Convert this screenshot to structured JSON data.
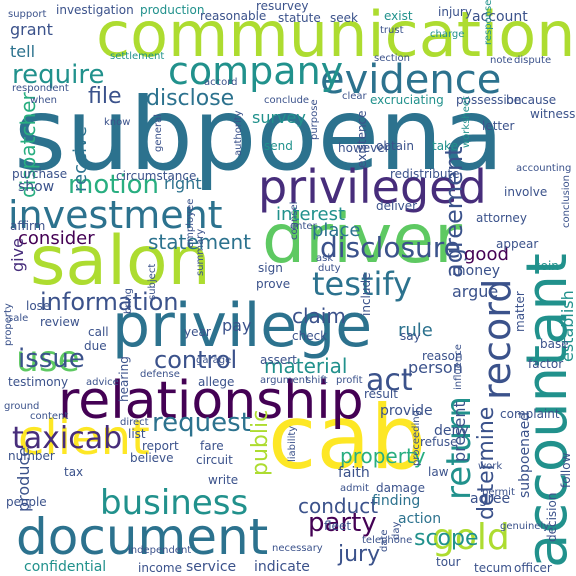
{
  "palette": {
    "dark_purple": "#440154",
    "indigo": "#472d7b",
    "blue": "#3b528b",
    "steel": "#2c728e",
    "teal": "#21918c",
    "sea_green": "#28ae80",
    "green": "#5ec962",
    "lime": "#addc30",
    "yellow": "#fde725"
  },
  "words": [
    {
      "text": "subpoena",
      "color": "#2c728e"
    },
    {
      "text": "communication",
      "color": "#addc30"
    },
    {
      "text": "privilege",
      "color": "#2c728e"
    },
    {
      "text": "cab",
      "color": "#fde725"
    },
    {
      "text": "document",
      "color": "#2c728e"
    },
    {
      "text": "relationship",
      "color": "#440154"
    },
    {
      "text": "salon",
      "color": "#addc30"
    },
    {
      "text": "driver",
      "color": "#5ec962"
    },
    {
      "text": "accountant",
      "color": "#21918c"
    },
    {
      "text": "evidence",
      "color": "#2c728e"
    },
    {
      "text": "privileged",
      "color": "#472d7b"
    },
    {
      "text": "client",
      "color": "#fde725"
    },
    {
      "text": "investment",
      "color": "#2c728e"
    },
    {
      "text": "company",
      "color": "#21918c"
    },
    {
      "text": "require",
      "color": "#21918c"
    },
    {
      "text": "record",
      "color": "#3b528b"
    },
    {
      "text": "return",
      "color": "#21918c"
    },
    {
      "text": "business",
      "color": "#21918c"
    },
    {
      "text": "gold",
      "color": "#addc30"
    },
    {
      "text": "testify",
      "color": "#2c728e"
    },
    {
      "text": "use",
      "color": "#5ec962"
    },
    {
      "text": "disclosure",
      "color": "#3b528b"
    },
    {
      "text": "taxicab",
      "color": "#472d7b"
    },
    {
      "text": "request",
      "color": "#2c728e"
    },
    {
      "text": "control",
      "color": "#3b528b"
    },
    {
      "text": "issue",
      "color": "#3b528b"
    },
    {
      "text": "information",
      "color": "#3b528b"
    },
    {
      "text": "motion",
      "color": "#28ae80"
    },
    {
      "text": "party",
      "color": "#440154"
    },
    {
      "text": "act",
      "color": "#3b528b"
    },
    {
      "text": "file",
      "color": "#3b528b"
    },
    {
      "text": "disclose",
      "color": "#2c728e"
    },
    {
      "text": "agreement",
      "color": "#3b528b"
    },
    {
      "text": "statement",
      "color": "#2c728e"
    },
    {
      "text": "claim",
      "color": "#3b528b"
    },
    {
      "text": "material",
      "color": "#21918c"
    },
    {
      "text": "conduct",
      "color": "#3b528b"
    },
    {
      "text": "public",
      "color": "#addc30"
    },
    {
      "text": "jury",
      "color": "#3b528b"
    },
    {
      "text": "scope",
      "color": "#21918c"
    },
    {
      "text": "determine",
      "color": "#3b528b"
    },
    {
      "text": "property",
      "color": "#28ae80"
    },
    {
      "text": "consider",
      "color": "#440154"
    },
    {
      "text": "interest",
      "color": "#21918c"
    },
    {
      "text": "place",
      "color": "#2c728e"
    },
    {
      "text": "good",
      "color": "#440154"
    },
    {
      "text": "receive",
      "color": "#2c728e"
    },
    {
      "text": "dispatcher",
      "color": "#28ae80"
    },
    {
      "text": "establish",
      "color": "#21918c"
    },
    {
      "text": "rule",
      "color": "#2c728e"
    },
    {
      "text": "person",
      "color": "#3b528b"
    },
    {
      "text": "produce",
      "color": "#3b528b"
    },
    {
      "text": "present",
      "color": "#3b528b"
    },
    {
      "text": "subpoenaed",
      "color": "#3b528b"
    },
    {
      "text": "grant",
      "color": "#3b528b"
    },
    {
      "text": "tell",
      "color": "#2c728e"
    },
    {
      "text": "survey",
      "color": "#21918c"
    },
    {
      "text": "right",
      "color": "#2c728e"
    },
    {
      "text": "show",
      "color": "#3b528b"
    },
    {
      "text": "give",
      "color": "#472d7b"
    },
    {
      "text": "pay",
      "color": "#3b528b"
    },
    {
      "text": "money",
      "color": "#3b528b"
    },
    {
      "text": "argue",
      "color": "#3b528b"
    },
    {
      "text": "finding",
      "color": "#2c728e"
    },
    {
      "text": "deny",
      "color": "#3b528b"
    },
    {
      "text": "provide",
      "color": "#3b528b"
    },
    {
      "text": "action",
      "color": "#2c728e"
    },
    {
      "text": "agree",
      "color": "#3b528b"
    },
    {
      "text": "service",
      "color": "#3b528b"
    },
    {
      "text": "indicate",
      "color": "#3b528b"
    },
    {
      "text": "confidential",
      "color": "#21918c"
    },
    {
      "text": "income",
      "color": "#3b528b"
    },
    {
      "text": "tecum",
      "color": "#3b528b"
    },
    {
      "text": "officer",
      "color": "#3b528b"
    },
    {
      "text": "investigation",
      "color": "#3b528b"
    },
    {
      "text": "production",
      "color": "#21918c"
    },
    {
      "text": "resurvey",
      "color": "#3b528b"
    },
    {
      "text": "reasonable",
      "color": "#3b528b"
    },
    {
      "text": "statute",
      "color": "#3b528b"
    },
    {
      "text": "seek",
      "color": "#3b528b"
    },
    {
      "text": "exist",
      "color": "#21918c"
    },
    {
      "text": "injury",
      "color": "#3b528b"
    },
    {
      "text": "account",
      "color": "#3b528b"
    },
    {
      "text": "support",
      "color": "#3b528b"
    },
    {
      "text": "trust",
      "color": "#3b528b"
    },
    {
      "text": "charge",
      "color": "#21918c"
    },
    {
      "text": "response",
      "color": "#21918c"
    },
    {
      "text": "settlement",
      "color": "#21918c"
    },
    {
      "text": "section",
      "color": "#3b528b"
    },
    {
      "text": "note",
      "color": "#3b528b"
    },
    {
      "text": "dispute",
      "color": "#3b528b"
    },
    {
      "text": "conclude",
      "color": "#3b528b"
    },
    {
      "text": "excruciating",
      "color": "#21918c"
    },
    {
      "text": "possession",
      "color": "#3b528b"
    },
    {
      "text": "because",
      "color": "#3b528b"
    },
    {
      "text": "witness",
      "color": "#3b528b"
    },
    {
      "text": "letter",
      "color": "#3b528b"
    },
    {
      "text": "worksheet",
      "color": "#21918c"
    },
    {
      "text": "accounting",
      "color": "#3b528b"
    },
    {
      "text": "obtain",
      "color": "#3b528b"
    },
    {
      "text": "take",
      "color": "#21918c"
    },
    {
      "text": "existence",
      "color": "#3b528b"
    },
    {
      "text": "purpose",
      "color": "#3b528b"
    },
    {
      "text": "authority",
      "color": "#3b528b"
    },
    {
      "text": "general",
      "color": "#3b528b"
    },
    {
      "text": "redistribute",
      "color": "#3b528b"
    },
    {
      "text": "involve",
      "color": "#3b528b"
    },
    {
      "text": "conclusion",
      "color": "#3b528b"
    },
    {
      "text": "purchase",
      "color": "#3b528b"
    },
    {
      "text": "circumstance",
      "color": "#3b528b"
    },
    {
      "text": "affirm",
      "color": "#3b528b"
    },
    {
      "text": "send",
      "color": "#21918c"
    },
    {
      "text": "however",
      "color": "#3b528b"
    },
    {
      "text": "deliver",
      "color": "#3b528b"
    },
    {
      "text": "attorney",
      "color": "#3b528b"
    },
    {
      "text": "appear",
      "color": "#3b528b"
    },
    {
      "text": "counsel",
      "color": "#3b528b"
    },
    {
      "text": "enter",
      "color": "#3b528b"
    },
    {
      "text": "employee",
      "color": "#3b528b"
    },
    {
      "text": "summary",
      "color": "#3b528b"
    },
    {
      "text": "sign",
      "color": "#3b528b"
    },
    {
      "text": "prove",
      "color": "#3b528b"
    },
    {
      "text": "ask",
      "color": "#3b528b"
    },
    {
      "text": "duty",
      "color": "#3b528b"
    },
    {
      "text": "review",
      "color": "#3b528b"
    },
    {
      "text": "lose",
      "color": "#3b528b"
    },
    {
      "text": "year",
      "color": "#3b528b"
    },
    {
      "text": "check",
      "color": "#3b528b"
    },
    {
      "text": "say",
      "color": "#3b528b"
    },
    {
      "text": "include",
      "color": "#3b528b"
    },
    {
      "text": "matter",
      "color": "#3b528b"
    },
    {
      "text": "coin",
      "color": "#21918c"
    },
    {
      "text": "sale",
      "color": "#3b528b"
    },
    {
      "text": "call",
      "color": "#3b528b"
    },
    {
      "text": "due",
      "color": "#3b528b"
    },
    {
      "text": "garage",
      "color": "#3b528b"
    },
    {
      "text": "assert",
      "color": "#3b528b"
    },
    {
      "text": "reason",
      "color": "#3b528b"
    },
    {
      "text": "base",
      "color": "#3b528b"
    },
    {
      "text": "factor",
      "color": "#3b528b"
    },
    {
      "text": "decision",
      "color": "#3b528b"
    },
    {
      "text": "follow",
      "color": "#3b528b"
    },
    {
      "text": "complaint",
      "color": "#3b528b"
    },
    {
      "text": "testimony",
      "color": "#3b528b"
    },
    {
      "text": "advice",
      "color": "#3b528b"
    },
    {
      "text": "defense",
      "color": "#3b528b"
    },
    {
      "text": "allege",
      "color": "#3b528b"
    },
    {
      "text": "argument",
      "color": "#3b528b"
    },
    {
      "text": "shift",
      "color": "#3b528b"
    },
    {
      "text": "profit",
      "color": "#3b528b"
    },
    {
      "text": "result",
      "color": "#3b528b"
    },
    {
      "text": "refuse",
      "color": "#3b528b"
    },
    {
      "text": "hearing",
      "color": "#3b528b"
    },
    {
      "text": "list",
      "color": "#3b528b"
    },
    {
      "text": "report",
      "color": "#3b528b"
    },
    {
      "text": "fare",
      "color": "#3b528b"
    },
    {
      "text": "believe",
      "color": "#3b528b"
    },
    {
      "text": "circuit",
      "color": "#3b528b"
    },
    {
      "text": "number",
      "color": "#3b528b"
    },
    {
      "text": "tax",
      "color": "#3b528b"
    },
    {
      "text": "people",
      "color": "#3b528b"
    },
    {
      "text": "write",
      "color": "#3b528b"
    },
    {
      "text": "faith",
      "color": "#3b528b"
    },
    {
      "text": "admit",
      "color": "#3b528b"
    },
    {
      "text": "liability",
      "color": "#3b528b"
    },
    {
      "text": "proceeding",
      "color": "#3b528b"
    },
    {
      "text": "law",
      "color": "#3b528b"
    },
    {
      "text": "damage",
      "color": "#3b528b"
    },
    {
      "text": "work",
      "color": "#3b528b"
    },
    {
      "text": "permit",
      "color": "#3b528b"
    },
    {
      "text": "fleet",
      "color": "#3b528b"
    },
    {
      "text": "telephone",
      "color": "#3b528b"
    },
    {
      "text": "date",
      "color": "#3b528b"
    },
    {
      "text": "day",
      "color": "#3b528b"
    },
    {
      "text": "tour",
      "color": "#3b528b"
    },
    {
      "text": "independent",
      "color": "#3b528b"
    },
    {
      "text": "necessary",
      "color": "#3b528b"
    },
    {
      "text": "genuinely",
      "color": "#3b528b"
    },
    {
      "text": "bring",
      "color": "#3b528b"
    },
    {
      "text": "subject",
      "color": "#3b528b"
    },
    {
      "text": "ground",
      "color": "#3b528b"
    },
    {
      "text": "accord",
      "color": "#3b528b"
    },
    {
      "text": "know",
      "color": "#3b528b"
    },
    {
      "text": "when",
      "color": "#3b528b"
    },
    {
      "text": "respondent",
      "color": "#3b528b"
    },
    {
      "text": "direct",
      "color": "#3b528b"
    },
    {
      "text": "content",
      "color": "#3b528b"
    },
    {
      "text": "influence",
      "color": "#3b528b"
    },
    {
      "text": "clear",
      "color": "#3b528b"
    },
    {
      "text": "property",
      "color": "#3b528b"
    }
  ]
}
